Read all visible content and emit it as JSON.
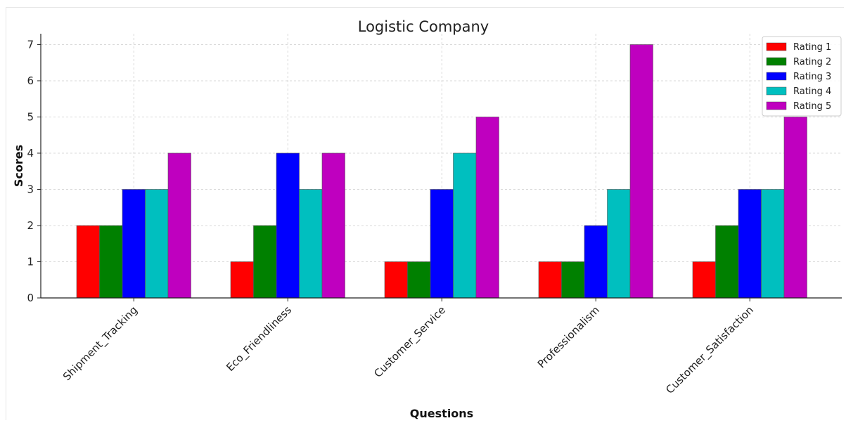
{
  "chart_data": {
    "type": "bar",
    "title": "Logistic Company",
    "xlabel": "Questions",
    "ylabel": "Scores",
    "categories": [
      "Shipment_Tracking",
      "Eco_Friendliness",
      "Customer_Service",
      "Professionalism",
      "Customer_Satisfaction"
    ],
    "series": [
      {
        "name": "Rating 1",
        "color": "#ff0000",
        "values": [
          2,
          1,
          1,
          1,
          1
        ]
      },
      {
        "name": "Rating 2",
        "color": "#008000",
        "values": [
          2,
          2,
          1,
          1,
          2
        ]
      },
      {
        "name": "Rating 3",
        "color": "#0000ff",
        "values": [
          3,
          4,
          3,
          2,
          3
        ]
      },
      {
        "name": "Rating 4",
        "color": "#00bfbf",
        "values": [
          3,
          3,
          4,
          3,
          3
        ]
      },
      {
        "name": "Rating 5",
        "color": "#bf00bf",
        "values": [
          4,
          4,
          5,
          7,
          5
        ]
      }
    ],
    "yticks": [
      0,
      1,
      2,
      3,
      4,
      5,
      6,
      7
    ],
    "ylim": [
      0,
      7.3
    ],
    "grid": true,
    "legend_position": "top-right"
  }
}
